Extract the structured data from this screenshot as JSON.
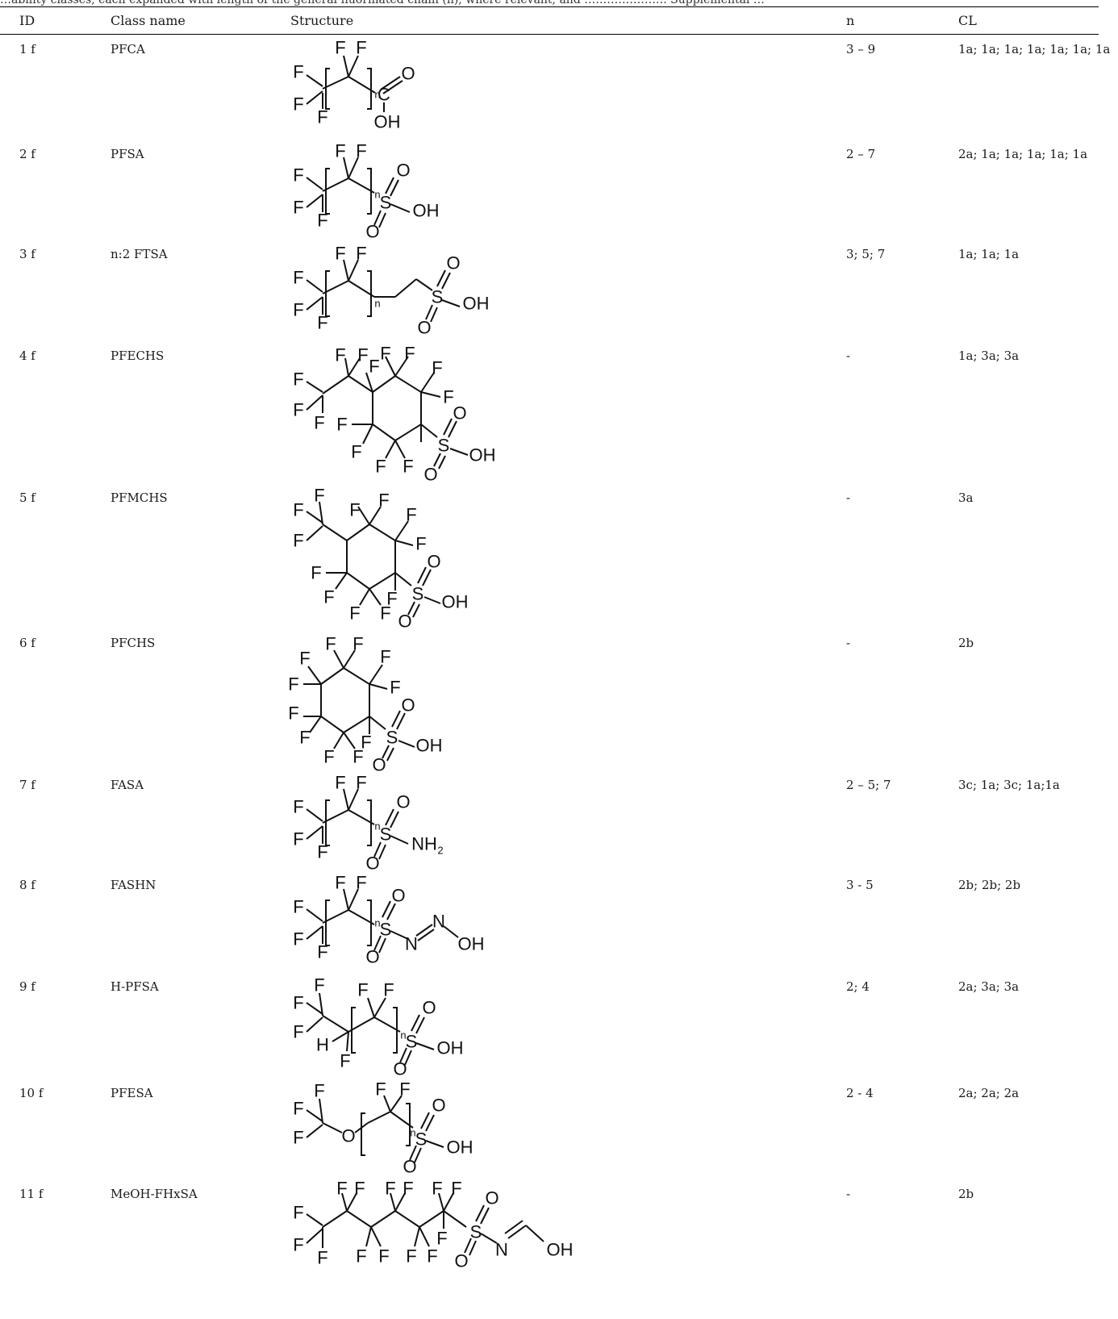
{
  "table": {
    "caption": "…ability classes, each expanded with length of the general fluorinated chain (n), where relevant, and …………………. Supplemental …",
    "headers": {
      "id": "ID",
      "class_name": "Class name",
      "structure": "Structure",
      "n": "n",
      "cl": "CL"
    },
    "rows": [
      {
        "id": "1 f",
        "class_name": "PFCA",
        "n": "3 – 9",
        "cl": "1a; 1a; 1a; 1a; 1a; 1a; 1a"
      },
      {
        "id": "2 f",
        "class_name": "PFSA",
        "n": "2 – 7",
        "cl": "2a; 1a; 1a; 1a; 1a; 1a"
      },
      {
        "id": "3 f",
        "class_name": "n:2 FTSA",
        "n": "3; 5; 7",
        "cl": "1a; 1a; 1a"
      },
      {
        "id": "4 f",
        "class_name": "PFECHS",
        "n": "-",
        "cl": "1a; 3a; 3a"
      },
      {
        "id": "5 f",
        "class_name": "PFMCHS",
        "n": "-",
        "cl": "3a"
      },
      {
        "id": "6 f",
        "class_name": "PFCHS",
        "n": "-",
        "cl": "2b"
      },
      {
        "id": "7 f",
        "class_name": "FASA",
        "n": "2 – 5; 7",
        "cl": "3c; 1a; 3c; 1a;1a"
      },
      {
        "id": "8 f",
        "class_name": "FASHN",
        "n": "3 - 5",
        "cl": "2b; 2b; 2b"
      },
      {
        "id": "9 f",
        "class_name": "H-PFSA",
        "n": "2; 4",
        "cl": "2a; 3a; 3a"
      },
      {
        "id": "10 f",
        "class_name": "PFESA",
        "n": "2 - 4",
        "cl": "2a; 2a; 2a"
      },
      {
        "id": "11 f",
        "class_name": "MeOH-FHxSA",
        "n": "-",
        "cl": "2b"
      }
    ]
  },
  "atoms": {
    "F": "F",
    "O": "O",
    "S": "S",
    "C": "C",
    "N": "N",
    "H": "H",
    "OH": "OH",
    "NH": "NH",
    "sub_2": "2",
    "sub_n": "n"
  }
}
